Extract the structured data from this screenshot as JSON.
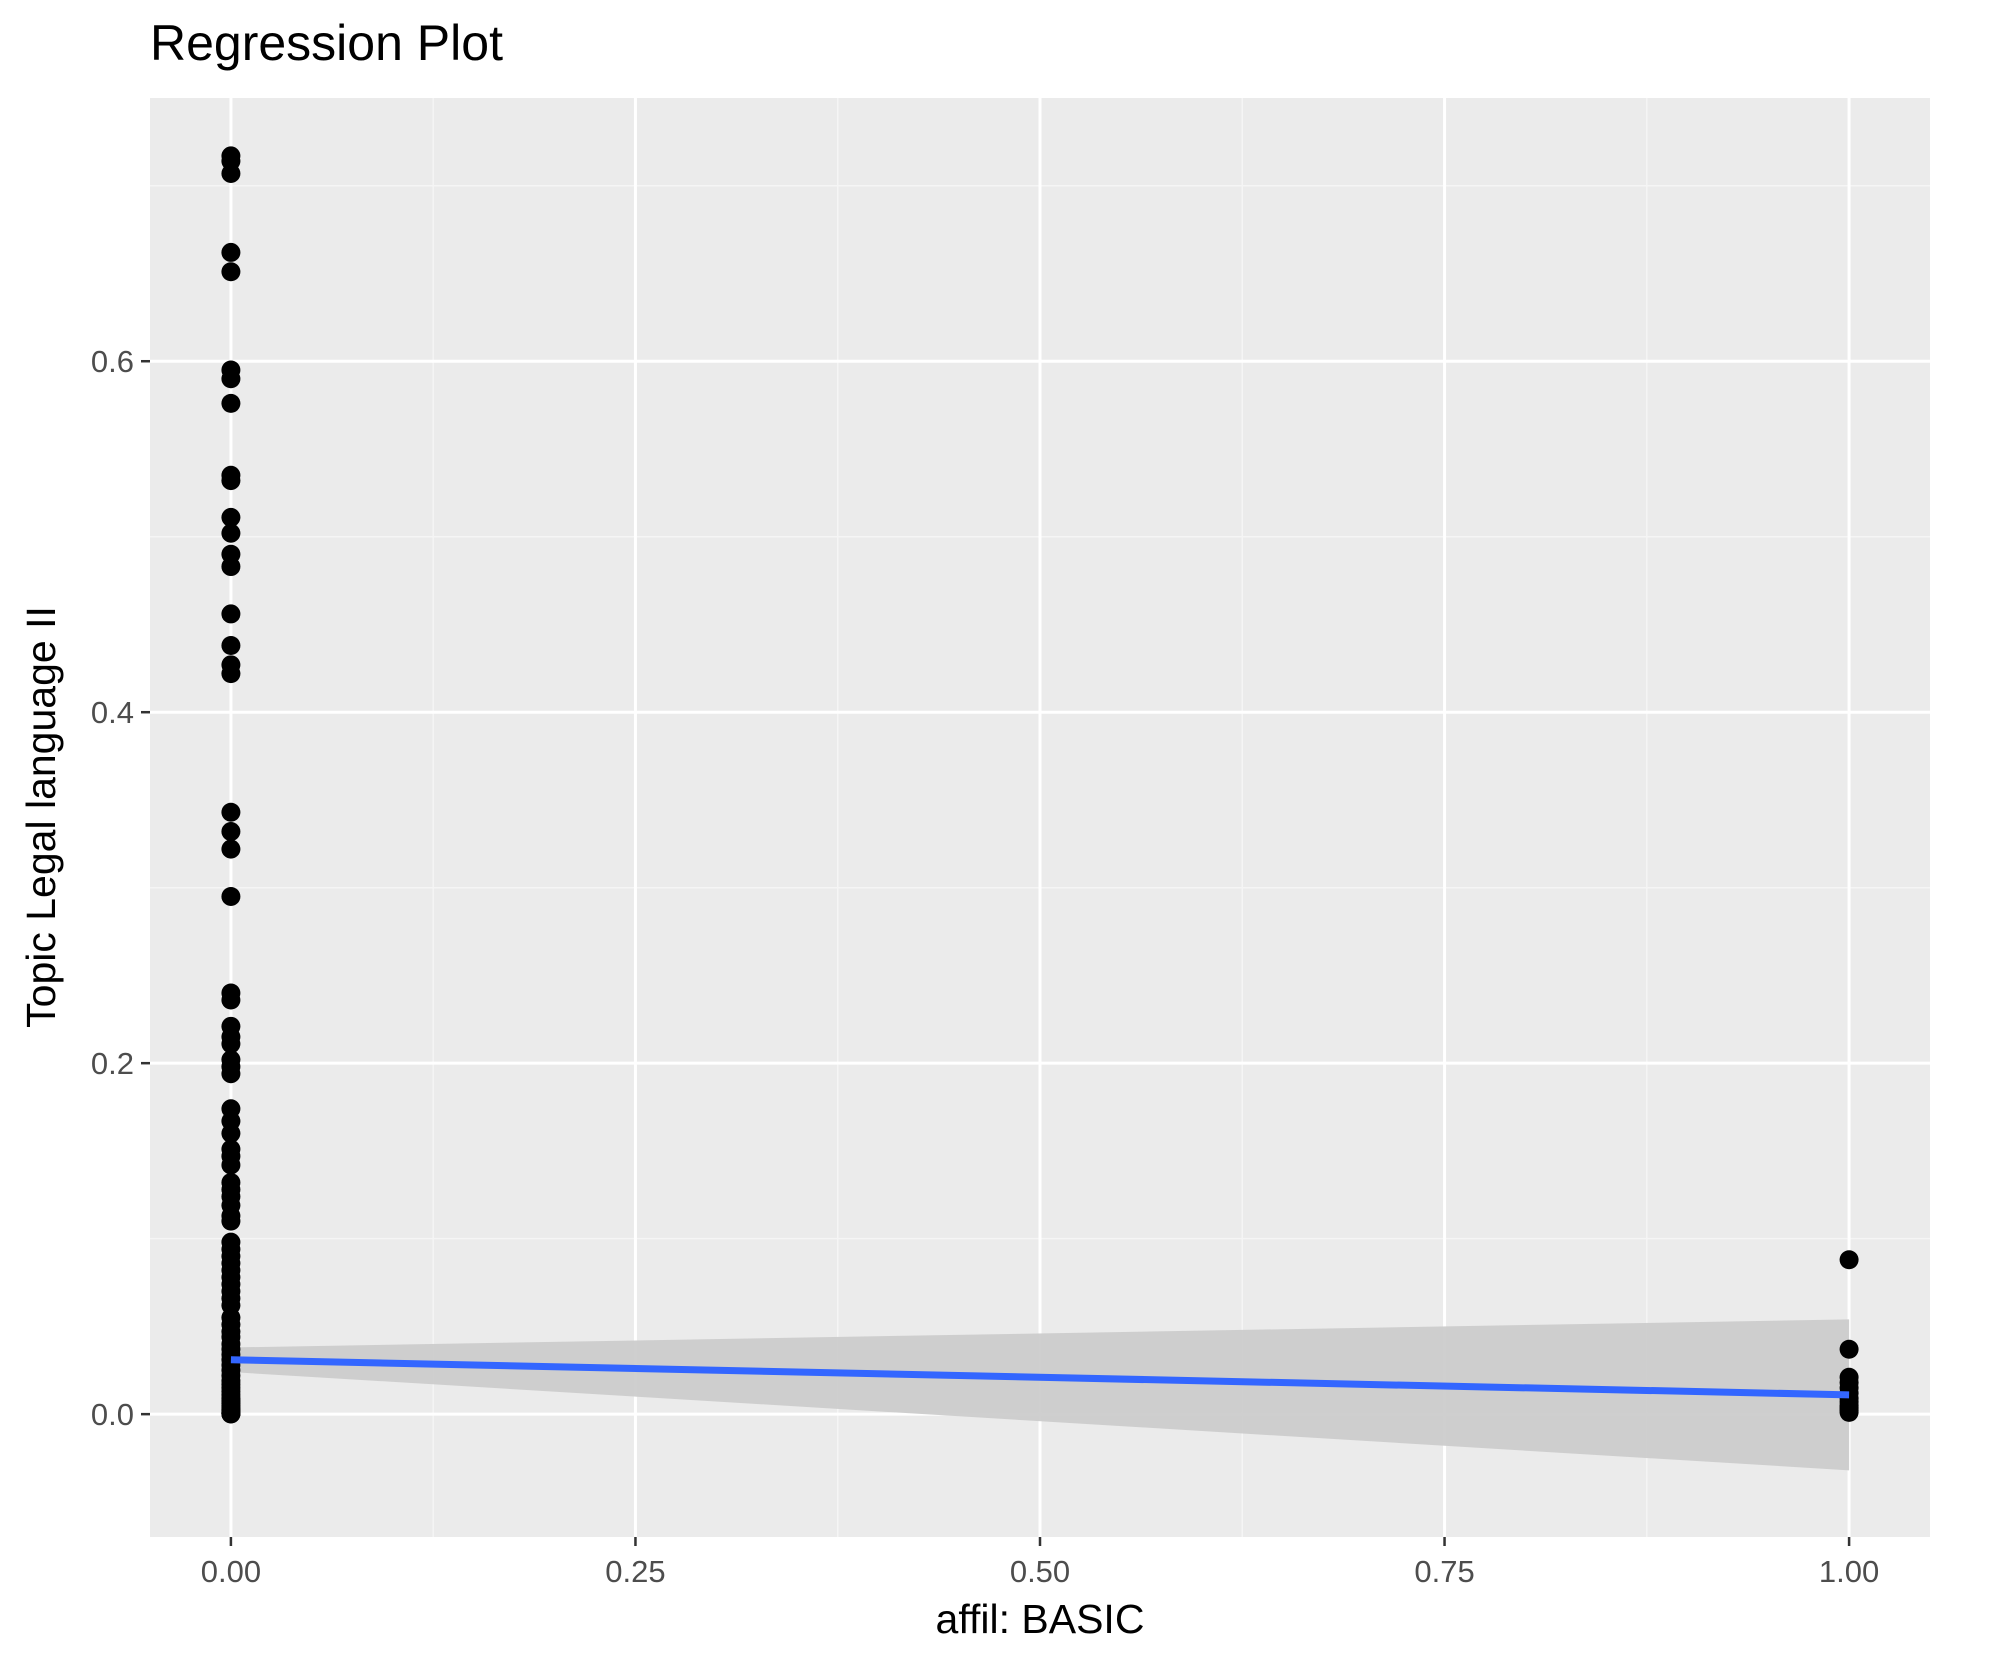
{
  "chart_data": {
    "type": "scatter",
    "title": "Regression Plot",
    "xlabel": "affil: BASIC",
    "ylabel": "Topic Legal language II",
    "xlim": [
      -0.05,
      1.05
    ],
    "ylim": [
      -0.07,
      0.75
    ],
    "x_ticks": [
      {
        "value": 0.0,
        "label": "0.00"
      },
      {
        "value": 0.25,
        "label": "0.25"
      },
      {
        "value": 0.5,
        "label": "0.50"
      },
      {
        "value": 0.75,
        "label": "0.75"
      },
      {
        "value": 1.0,
        "label": "1.00"
      }
    ],
    "y_ticks": [
      {
        "value": 0.0,
        "label": "0.0"
      },
      {
        "value": 0.2,
        "label": "0.2"
      },
      {
        "value": 0.4,
        "label": "0.4"
      },
      {
        "value": 0.6,
        "label": "0.6"
      }
    ],
    "grid": true,
    "series": [
      {
        "kind": "points",
        "x": [
          0,
          0,
          0,
          0,
          0,
          0,
          0,
          0,
          0,
          0,
          0,
          0,
          0,
          0,
          0,
          0,
          0,
          0,
          0,
          0,
          0,
          0,
          0,
          0,
          0,
          0,
          0,
          0,
          0,
          0,
          0,
          0,
          0,
          0,
          0,
          0,
          0,
          0,
          0,
          0,
          0,
          0,
          0,
          0,
          0,
          0,
          0,
          0,
          0,
          0,
          0,
          0,
          0,
          0,
          0,
          0,
          0,
          0,
          0,
          0,
          0,
          0,
          0,
          0,
          0,
          0,
          0,
          0,
          0,
          0,
          0,
          0,
          0,
          0,
          0,
          0,
          0,
          0,
          0,
          0,
          0,
          0,
          0,
          0,
          0,
          1,
          1,
          1,
          1,
          1,
          1,
          1,
          1,
          1,
          1,
          1,
          1,
          1
        ],
        "y": [
          0.717,
          0.714,
          0.707,
          0.662,
          0.651,
          0.595,
          0.59,
          0.576,
          0.535,
          0.532,
          0.511,
          0.502,
          0.49,
          0.483,
          0.456,
          0.438,
          0.427,
          0.422,
          0.343,
          0.332,
          0.322,
          0.295,
          0.24,
          0.236,
          0.221,
          0.215,
          0.211,
          0.202,
          0.198,
          0.194,
          0.174,
          0.167,
          0.16,
          0.151,
          0.147,
          0.142,
          0.132,
          0.128,
          0.124,
          0.119,
          0.113,
          0.11,
          0.098,
          0.094,
          0.09,
          0.086,
          0.082,
          0.078,
          0.074,
          0.07,
          0.066,
          0.062,
          0.055,
          0.051,
          0.047,
          0.044,
          0.04,
          0.037,
          0.034,
          0.031,
          0.028,
          0.025,
          0.022,
          0.019,
          0.017,
          0.015,
          0.013,
          0.011,
          0.009,
          0.008,
          0.007,
          0.006,
          0.005,
          0.004,
          0.003,
          0.0025,
          0.002,
          0.0015,
          0.001,
          0.0008,
          0.0006,
          0.0004,
          0.0003,
          0.0002,
          0.0001,
          0.088,
          0.037,
          0.021,
          0.018,
          0.015,
          0.012,
          0.009,
          0.007,
          0.005,
          0.004,
          0.003,
          0.002,
          0.001
        ],
        "color": "#000000"
      },
      {
        "kind": "regression_line",
        "x": [
          0,
          1
        ],
        "y": [
          0.031,
          0.011
        ],
        "color": "#3366ff"
      },
      {
        "kind": "confidence_band",
        "x": [
          0,
          1
        ],
        "upper": [
          0.038,
          0.054
        ],
        "lower": [
          0.024,
          -0.032
        ],
        "color": "#cccccc"
      }
    ],
    "colors": {
      "panel_background": "#ebebeb",
      "grid_major": "#ffffff",
      "grid_minor": "#f5f5f5",
      "point": "#000000",
      "line": "#3366ff",
      "band": "#cccccc",
      "tick_label": "#4d4d4d"
    }
  }
}
